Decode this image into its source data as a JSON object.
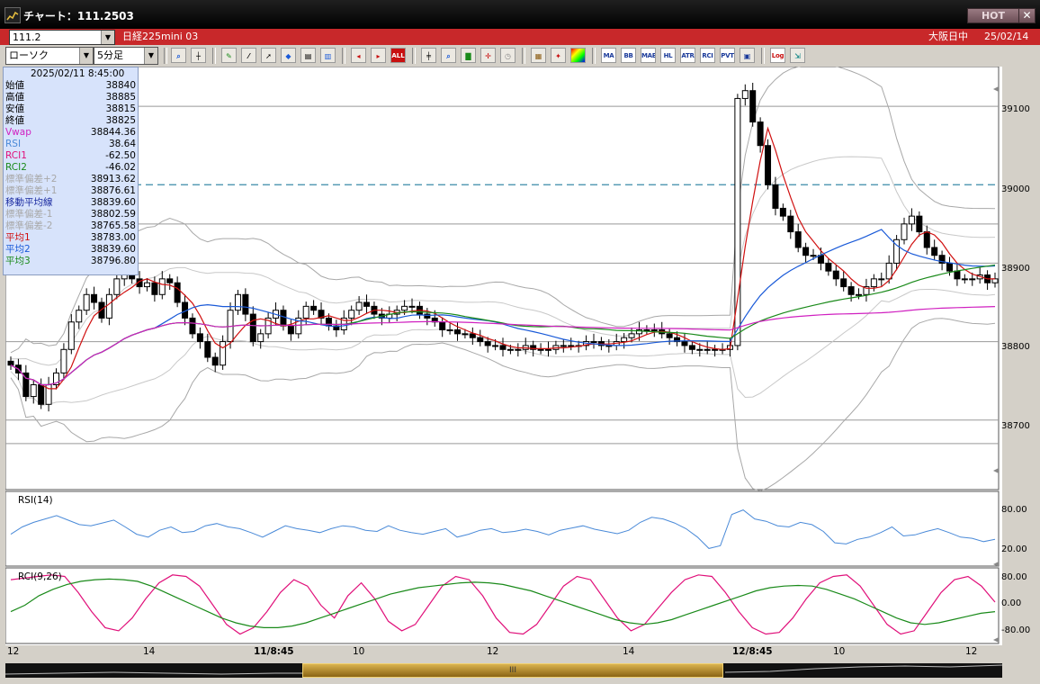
{
  "window": {
    "title": "チャート：111.2503",
    "hot_label": "HOT",
    "close_label": "✕"
  },
  "symbol_bar": {
    "code": "111.2",
    "name": "日経225mini 03",
    "market": "大阪日中",
    "date": "25/02/14"
  },
  "toolbar": {
    "chart_type": "ローソク",
    "timeframe": "5分足",
    "text_buttons": [
      "MA",
      "BB",
      "MAE",
      "HL",
      "ATR",
      "RCI",
      "PVT",
      "Log"
    ]
  },
  "info_panel": {
    "datetime": "2025/02/11 8:45:00",
    "rows": [
      {
        "label": "始値",
        "value": "38840",
        "color": "#000000"
      },
      {
        "label": "高値",
        "value": "38885",
        "color": "#000000"
      },
      {
        "label": "安値",
        "value": "38815",
        "color": "#000000"
      },
      {
        "label": "終値",
        "value": "38825",
        "color": "#000000"
      },
      {
        "label": "Vwap",
        "value": "38844.36",
        "color": "#d020c0"
      },
      {
        "label": "RSI",
        "value": "38.64",
        "color": "#4a8ad8"
      },
      {
        "label": "RCI1",
        "value": "-62.50",
        "color": "#e0107a"
      },
      {
        "label": "RCI2",
        "value": "-46.02",
        "color": "#1a8a1a"
      },
      {
        "label": "標準偏差+2",
        "value": "38913.62",
        "color": "#a8a8a8"
      },
      {
        "label": "標準偏差+1",
        "value": "38876.61",
        "color": "#a8a8a8"
      },
      {
        "label": "移動平均線",
        "value": "38839.60",
        "color": "#1a2aa0"
      },
      {
        "label": "標準偏差-1",
        "value": "38802.59",
        "color": "#a8a8a8"
      },
      {
        "label": "標準偏差-2",
        "value": "38765.58",
        "color": "#a8a8a8"
      },
      {
        "label": "平均1",
        "value": "38783.00",
        "color": "#d01010"
      },
      {
        "label": "平均2",
        "value": "38839.60",
        "color": "#1a5ad8"
      },
      {
        "label": "平均3",
        "value": "38796.80",
        "color": "#1a8a1a"
      }
    ]
  },
  "price_axis": {
    "labels": [
      "39100",
      "39000",
      "38900",
      "38800",
      "38700"
    ]
  },
  "rsi_panel": {
    "title": "RSI(14)",
    "labels": [
      "80.00",
      "20.00"
    ]
  },
  "rci_panel": {
    "title": "RCI(9,26)",
    "labels": [
      "80.00",
      "0.00",
      "-80.00"
    ]
  },
  "time_axis": {
    "labels": [
      {
        "text": "12",
        "bold": false
      },
      {
        "text": "14",
        "bold": false
      },
      {
        "text": "11/8:45",
        "bold": true
      },
      {
        "text": "10",
        "bold": false
      },
      {
        "text": "12",
        "bold": false
      },
      {
        "text": "14",
        "bold": false
      },
      {
        "text": "12/8:45",
        "bold": true
      },
      {
        "text": "10",
        "bold": false
      },
      {
        "text": "12",
        "bold": false
      }
    ]
  },
  "scrollbar": {
    "thumb_label": "III"
  },
  "chart_data": {
    "type": "candlestick",
    "price_range": [
      38640,
      39130
    ],
    "reference_lines": [
      39000
    ],
    "closes": [
      38770,
      38760,
      38730,
      38745,
      38720,
      38745,
      38760,
      38790,
      38825,
      38840,
      38860,
      38850,
      38830,
      38860,
      38880,
      38895,
      38880,
      38870,
      38875,
      38860,
      38880,
      38875,
      38850,
      38830,
      38810,
      38800,
      38780,
      38770,
      38800,
      38840,
      38860,
      38835,
      38800,
      38810,
      38830,
      38840,
      38820,
      38810,
      38830,
      38845,
      38840,
      38830,
      38820,
      38815,
      38830,
      38840,
      38850,
      38845,
      38835,
      38830,
      38835,
      38840,
      38845,
      38845,
      38835,
      38830,
      38825,
      38815,
      38815,
      38810,
      38810,
      38805,
      38800,
      38795,
      38795,
      38790,
      38790,
      38790,
      38795,
      38790,
      38790,
      38790,
      38795,
      38795,
      38795,
      38795,
      38800,
      38800,
      38795,
      38795,
      38800,
      38805,
      38810,
      38815,
      38815,
      38815,
      38810,
      38805,
      38800,
      38795,
      38790,
      38790,
      38790,
      38790,
      38790,
      38795,
      39110,
      39120,
      39080,
      39050,
      39000,
      38970,
      38960,
      38940,
      38920,
      38910,
      38910,
      38900,
      38890,
      38880,
      38870,
      38860,
      38860,
      38870,
      38880,
      38880,
      38900,
      38930,
      38950,
      38960,
      38940,
      38920,
      38910,
      38900,
      38890,
      38880,
      38880,
      38880,
      38885,
      38875,
      38880
    ],
    "rsi": [
      45,
      58,
      66,
      72,
      78,
      70,
      62,
      60,
      65,
      70,
      58,
      45,
      40,
      52,
      58,
      48,
      50,
      60,
      64,
      58,
      55,
      48,
      40,
      50,
      60,
      55,
      52,
      48,
      55,
      60,
      58,
      52,
      50,
      60,
      52,
      48,
      45,
      50,
      55,
      40,
      45,
      52,
      55,
      48,
      50,
      54,
      50,
      44,
      52,
      56,
      60,
      54,
      50,
      46,
      52,
      66,
      75,
      72,
      65,
      55,
      40,
      20,
      25,
      80,
      88,
      72,
      68,
      60,
      58,
      66,
      62,
      50,
      30,
      28,
      36,
      40,
      48,
      58,
      42,
      44,
      50,
      55,
      48,
      40,
      38,
      32,
      36
    ],
    "rci1": [
      80,
      85,
      90,
      95,
      90,
      40,
      -20,
      -70,
      -80,
      -40,
      20,
      70,
      95,
      90,
      60,
      0,
      -60,
      -90,
      -70,
      -20,
      40,
      80,
      60,
      0,
      -40,
      30,
      70,
      20,
      -50,
      -80,
      -60,
      0,
      60,
      90,
      80,
      30,
      -40,
      -85,
      -90,
      -60,
      0,
      60,
      90,
      80,
      20,
      -40,
      -80,
      -60,
      -10,
      40,
      80,
      95,
      90,
      40,
      -20,
      -70,
      -90,
      -85,
      -40,
      20,
      70,
      90,
      95,
      60,
      0,
      -60,
      -90,
      -80,
      -20,
      40,
      80,
      90,
      60,
      10
    ],
    "rci2": [
      -20,
      0,
      30,
      50,
      65,
      75,
      80,
      82,
      80,
      75,
      60,
      40,
      20,
      0,
      -20,
      -40,
      -55,
      -65,
      -70,
      -70,
      -65,
      -55,
      -40,
      -25,
      -10,
      5,
      20,
      35,
      45,
      55,
      60,
      65,
      70,
      72,
      70,
      65,
      55,
      45,
      30,
      15,
      0,
      -15,
      -30,
      -45,
      -55,
      -60,
      -55,
      -45,
      -30,
      -15,
      0,
      15,
      30,
      45,
      55,
      60,
      62,
      60,
      50,
      35,
      20,
      0,
      -20,
      -40,
      -55,
      -60,
      -55,
      -45,
      -35,
      -25,
      -20
    ]
  }
}
